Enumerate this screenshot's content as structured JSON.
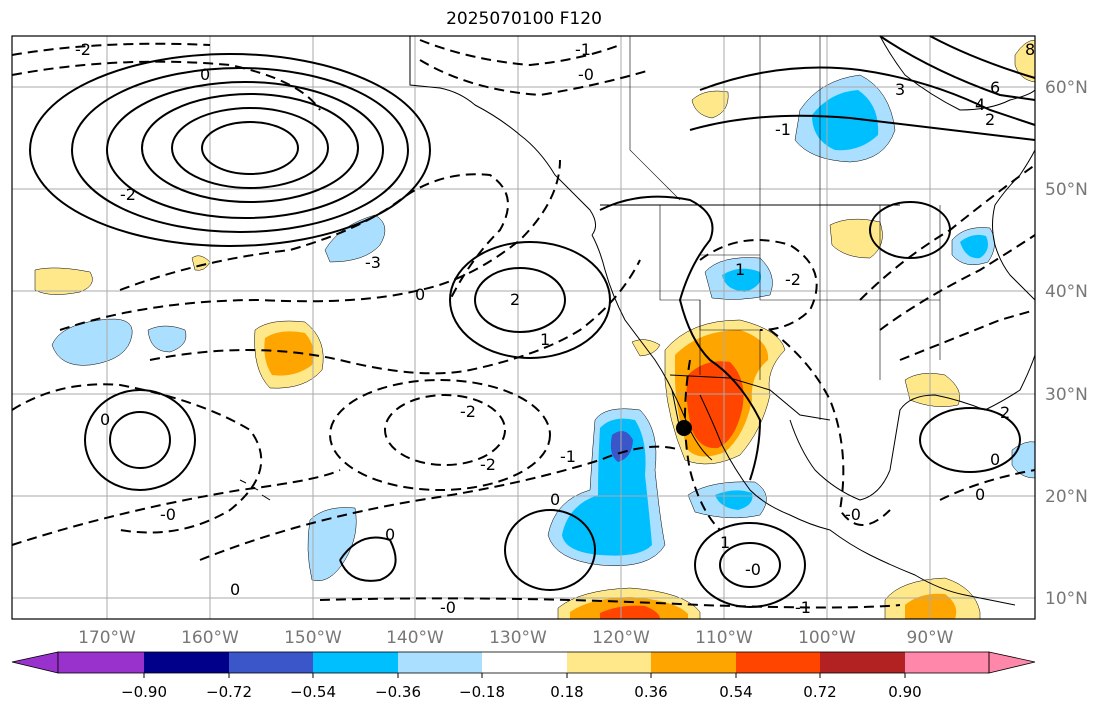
{
  "title": "2025070100 F120",
  "lat_labels": [
    "60°N",
    "50°N",
    "40°N",
    "30°N",
    "20°N",
    "10°N"
  ],
  "lon_labels": [
    "170°W",
    "160°W",
    "150°W",
    "140°W",
    "130°W",
    "120°W",
    "110°W",
    "100°W",
    "90°W"
  ],
  "colorbar": {
    "ticks": [
      "−0.90",
      "−0.72",
      "−0.54",
      "−0.36",
      "−0.18",
      "0.18",
      "0.36",
      "0.54",
      "0.72",
      "0.90"
    ],
    "colors": [
      "#9932cc",
      "#00008b",
      "#3a56c8",
      "#00bfff",
      "#aadfff",
      "#ffffff",
      "#ffe88a",
      "#ffa500",
      "#ff4500",
      "#b22222",
      "#ff88aa"
    ]
  },
  "contour_labels": [
    "-3",
    "-2",
    "-1",
    "-1",
    "-0",
    "1",
    "0",
    "3",
    "4",
    "6",
    "-2",
    "-2",
    "-3",
    "2",
    "2",
    "0",
    "-2",
    "2",
    "1",
    "-1",
    "-1",
    "-2",
    "-0",
    "-1",
    "-2",
    "-2",
    "0",
    "-1",
    "0",
    "-0",
    "-0",
    "-1",
    "-2",
    "0",
    "0",
    "0",
    "-1",
    "0",
    "-0",
    "3",
    "4",
    "6",
    "8",
    "2",
    "-1",
    "-2",
    "-1",
    "-1",
    "-0",
    "-2",
    "1",
    "0",
    "1"
  ],
  "colors": {
    "land_edge": "#000000",
    "grid": "#aaaaaa",
    "contour": "#000000"
  }
}
